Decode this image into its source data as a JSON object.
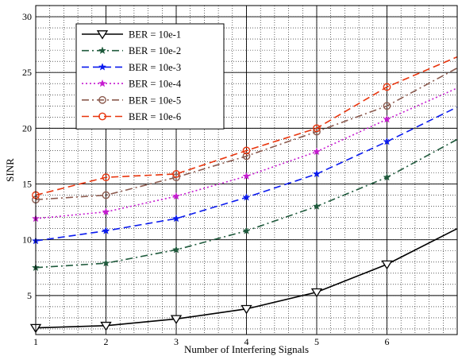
{
  "chart_data": {
    "type": "line",
    "title": "",
    "xlabel": "Number of Interfering Signals",
    "ylabel": "SINR",
    "xlim": [
      1,
      7
    ],
    "ylim": [
      1.5,
      31
    ],
    "x_ticks": [
      1,
      2,
      3,
      4,
      5,
      6
    ],
    "y_ticks": [
      5,
      10,
      15,
      20,
      25,
      30
    ],
    "grid": true,
    "grid_style": "dotted with solid major lines",
    "legend_position": "top-left",
    "x": [
      1,
      2,
      3,
      4,
      5,
      6,
      7
    ],
    "series": [
      {
        "name": "BER = 10e-1",
        "color": "#000000",
        "dash": "solid",
        "marker": "triangle-down-open",
        "values": [
          2.1,
          2.3,
          2.9,
          3.8,
          5.3,
          7.8,
          11.0
        ]
      },
      {
        "name": "BER = 10e-2",
        "color": "#1f5a3c",
        "dash": "dashdot",
        "marker": "star",
        "values": [
          7.5,
          7.9,
          9.1,
          10.8,
          13.0,
          15.6,
          19.0
        ]
      },
      {
        "name": "BER = 10e-3",
        "color": "#0a1aee",
        "dash": "dashed",
        "marker": "star",
        "values": [
          9.9,
          10.8,
          11.9,
          13.8,
          15.9,
          18.8,
          21.9
        ]
      },
      {
        "name": "BER = 10e-4",
        "color": "#c51ad0",
        "dash": "dotted",
        "marker": "star",
        "values": [
          11.9,
          12.5,
          13.9,
          15.7,
          17.9,
          20.8,
          23.6
        ]
      },
      {
        "name": "BER = 10e-5",
        "color": "#8b5a4e",
        "dash": "dashdot",
        "marker": "circle-open",
        "values": [
          13.6,
          14.0,
          15.6,
          17.5,
          19.7,
          22.0,
          25.4
        ]
      },
      {
        "name": "BER = 10e-6",
        "color": "#e8340c",
        "dash": "dashed",
        "marker": "circle-open",
        "values": [
          14.0,
          15.6,
          15.9,
          18.0,
          20.0,
          23.7,
          26.4
        ]
      }
    ]
  }
}
